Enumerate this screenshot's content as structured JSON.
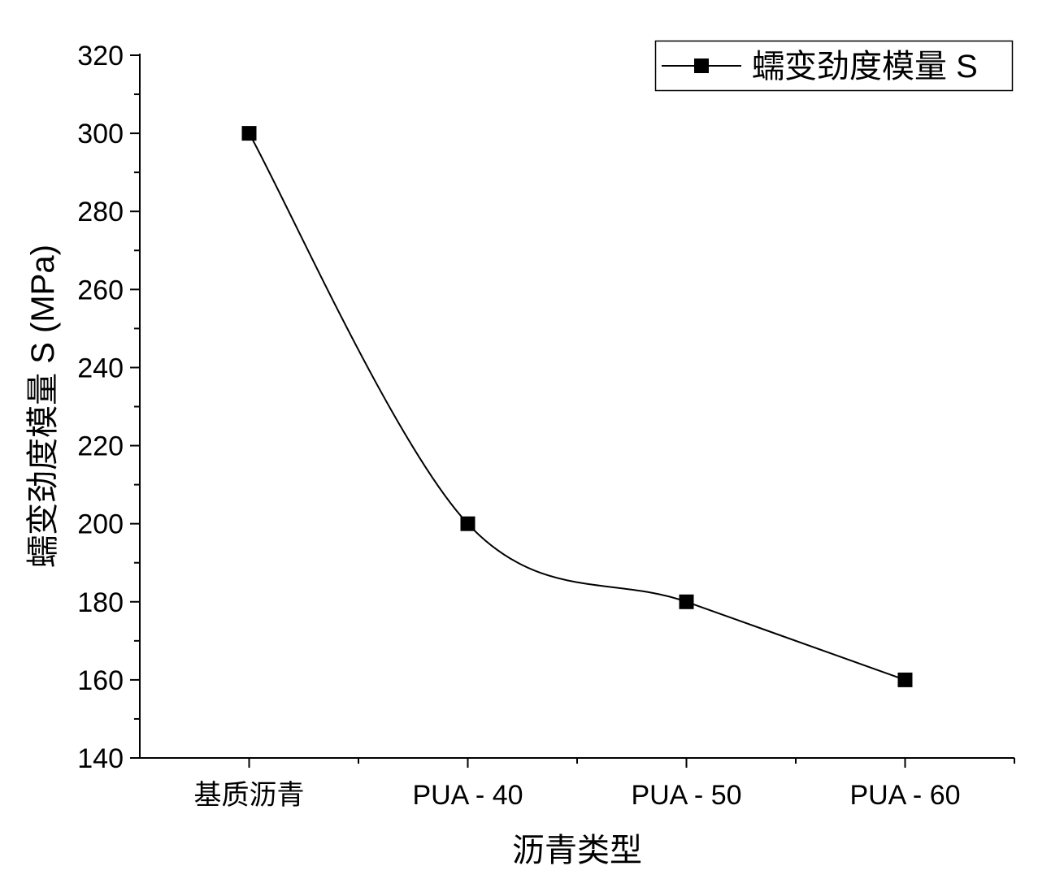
{
  "chart_data": {
    "type": "line",
    "title": "",
    "xlabel": "沥青类型",
    "ylabel": "蠕变劲度模量 S (MPa)",
    "categories": [
      "基质沥青",
      "PUA - 40",
      "PUA - 50",
      "PUA - 60"
    ],
    "series": [
      {
        "name": "蠕变劲度模量 S",
        "values": [
          300,
          200,
          180,
          160
        ],
        "color": "#000000",
        "marker": "square",
        "smooth": true
      }
    ],
    "ylim": [
      140,
      320
    ],
    "yticks": [
      140,
      160,
      180,
      200,
      220,
      240,
      260,
      280,
      300,
      320
    ],
    "grid": false,
    "legend_position": "top-right"
  }
}
